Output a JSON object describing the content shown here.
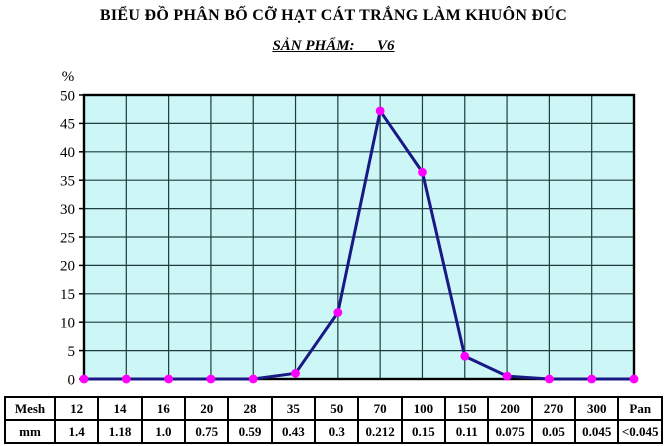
{
  "title": "BIỂU ĐỒ PHÂN BỐ CỠ HẠT CÁT TRẮNG LÀM KHUÔN ĐÚC",
  "subtitle": "SẢN PHẨM:      V6",
  "y_axis_unit_label": "%",
  "colors": {
    "line": "#191985",
    "marker": "#ff00ff",
    "plot_background": "#cdf7f7",
    "gridline": "#1e3d3d",
    "border": "#000000",
    "text": "#000000"
  },
  "chart_data": {
    "type": "line",
    "title": "BIỂU ĐỒ PHÂN BỐ CỠ HẠT CÁT TRẮNG LÀM KHUÔN ĐÚC",
    "subtitle": "SẢN PHẨM: V6",
    "xlabel": "",
    "ylabel": "%",
    "categories": [
      "12",
      "14",
      "16",
      "20",
      "28",
      "35",
      "50",
      "70",
      "100",
      "150",
      "200",
      "270",
      "300",
      "Pan"
    ],
    "categories_mm": [
      "1.4",
      "1.18",
      "1.0",
      "0.75",
      "0.59",
      "0.43",
      "0.3",
      "0.212",
      "0.15",
      "0.11",
      "0.075",
      "0.05",
      "0.045",
      "<0.045"
    ],
    "values": [
      0,
      0,
      0,
      0,
      0,
      1,
      11.7,
      47.2,
      36.4,
      4,
      0.5,
      0,
      0,
      0
    ],
    "ylim": [
      0,
      50
    ],
    "y_ticks": [
      0,
      5,
      10,
      15,
      20,
      25,
      30,
      35,
      40,
      45,
      50
    ],
    "grid": true,
    "legend": "none",
    "marker_shape": "circle"
  },
  "table": {
    "row1_header": "Mesh",
    "row2_header": "mm",
    "mesh_values": [
      "12",
      "14",
      "16",
      "20",
      "28",
      "35",
      "50",
      "70",
      "100",
      "150",
      "200",
      "270",
      "300",
      "Pan"
    ],
    "mm_values": [
      "1.4",
      "1.18",
      "1.0",
      "0.75",
      "0.59",
      "0.43",
      "0.3",
      "0.212",
      "0.15",
      "0.11",
      "0.075",
      "0.05",
      "0.045",
      "<0.045"
    ]
  }
}
